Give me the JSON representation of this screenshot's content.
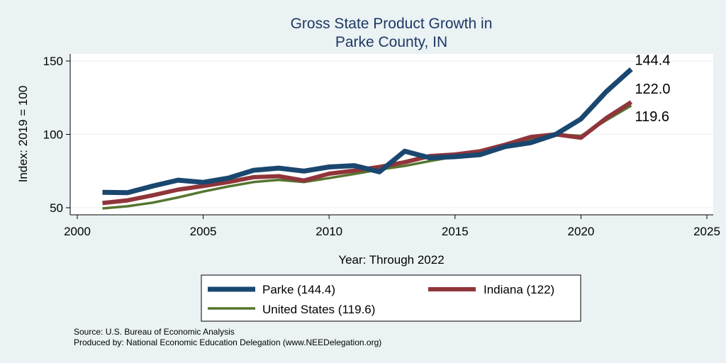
{
  "chart_data": {
    "type": "line",
    "title": [
      "Gross State Product Growth in",
      "Parke County, IN"
    ],
    "xlabel": "Year: Through 2022",
    "ylabel": "Index: 2019 = 100",
    "xlim": [
      2000,
      2025
    ],
    "ylim": [
      50,
      150
    ],
    "xticks": [
      2000,
      2005,
      2010,
      2015,
      2020,
      2025
    ],
    "yticks": [
      50,
      100,
      150
    ],
    "grid": true,
    "legend_position": "bottom",
    "x": [
      2001,
      2002,
      2003,
      2004,
      2005,
      2006,
      2007,
      2008,
      2009,
      2010,
      2011,
      2012,
      2013,
      2014,
      2015,
      2016,
      2017,
      2018,
      2019,
      2020,
      2021,
      2022
    ],
    "series": [
      {
        "name": "Parke",
        "legend_label": "Parke  (144.4)",
        "color": "#1a476f",
        "end_label": "144.4",
        "values": [
          60.5,
          60.3,
          64.8,
          68.8,
          67.3,
          70.2,
          75.5,
          77.0,
          75.0,
          77.8,
          78.7,
          74.5,
          88.5,
          84.0,
          84.8,
          86.2,
          91.7,
          94.3,
          100.0,
          110.5,
          129.0,
          144.4
        ]
      },
      {
        "name": "Indiana",
        "legend_label": "Indiana (122)",
        "color": "#90353b",
        "end_label": "122.0",
        "values": [
          53.2,
          55.0,
          58.5,
          62.3,
          64.8,
          67.5,
          70.8,
          71.5,
          68.5,
          73.2,
          75.3,
          77.8,
          81.0,
          85.2,
          86.3,
          88.5,
          93.0,
          98.2,
          100.0,
          97.7,
          111.0,
          122.0
        ]
      },
      {
        "name": "United States",
        "legend_label": "United States (119.6)",
        "color": "#55752f",
        "end_label": "119.6",
        "values": [
          49.5,
          51.0,
          53.5,
          57.0,
          61.0,
          64.5,
          67.5,
          69.0,
          67.5,
          70.2,
          73.0,
          76.0,
          78.5,
          81.8,
          84.8,
          87.5,
          91.5,
          96.0,
          100.0,
          99.0,
          109.5,
          119.6
        ]
      }
    ]
  },
  "notes": {
    "source": "Source: U.S. Bureau of Economic Analysis",
    "produced_by": "Produced by: National Economic Education Delegation (www.NEEDelegation.org)"
  }
}
